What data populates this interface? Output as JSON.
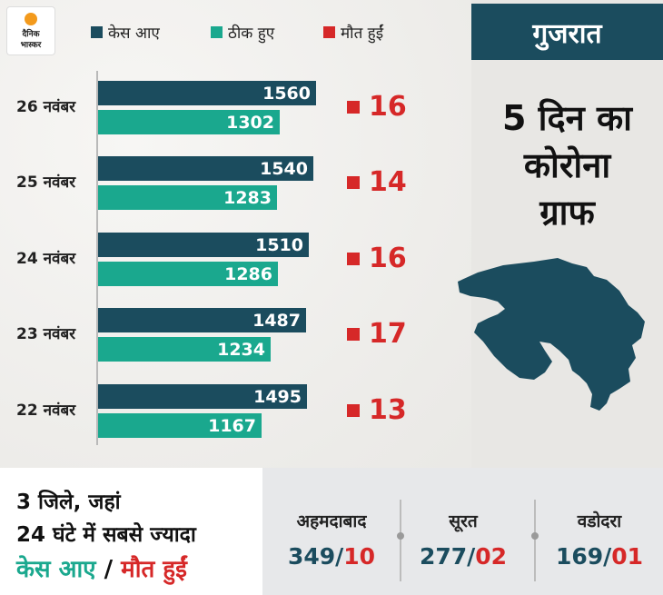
{
  "brand": {
    "line1": "दैनिक",
    "line2": "भास्कर"
  },
  "colors": {
    "cases": "#1b4c5e",
    "recovered": "#1aa88e",
    "deaths": "#d62828"
  },
  "legend": [
    {
      "label": "केस आए",
      "color": "#1b4c5e"
    },
    {
      "label": "ठीक हुए",
      "color": "#1aa88e"
    },
    {
      "label": "मौत हुईं",
      "color": "#d62828"
    }
  ],
  "state": "गुजरात",
  "graph_title": [
    "5 दिन का",
    "कोरोना",
    "ग्राफ"
  ],
  "chart_data": {
    "type": "bar",
    "orientation": "horizontal",
    "categories": [
      "26 नवंबर",
      "25 नवंबर",
      "24 नवंबर",
      "23 नवंबर",
      "22 नवंबर"
    ],
    "series": [
      {
        "name": "केस आए",
        "values": [
          1560,
          1540,
          1510,
          1487,
          1495
        ]
      },
      {
        "name": "ठीक हुए",
        "values": [
          1302,
          1283,
          1286,
          1234,
          1167
        ]
      },
      {
        "name": "मौत हुईं",
        "values": [
          16,
          14,
          16,
          17,
          13
        ]
      }
    ],
    "labels": {
      "cases": [
        "1560",
        "1540",
        "1510",
        "1487",
        "1495"
      ],
      "recovered": [
        "1302",
        "1283",
        "1286",
        "1234",
        "1167"
      ],
      "deaths": [
        "16",
        "14",
        "16",
        "17",
        "13"
      ]
    }
  },
  "bottom": {
    "title_line1": "3 जिले, जहां",
    "title_line2": "24 घंटे में सबसे ज्यादा",
    "title_cases": "केस आए",
    "title_sep": " / ",
    "title_deaths": "मौत हुईं",
    "cities": [
      {
        "name": "अहमदाबाद",
        "cases": "349",
        "deaths": "10"
      },
      {
        "name": "सूरत",
        "cases": "277",
        "deaths": "02"
      },
      {
        "name": "वडोदरा",
        "cases": "169",
        "deaths": "01"
      }
    ],
    "slash": "/"
  }
}
